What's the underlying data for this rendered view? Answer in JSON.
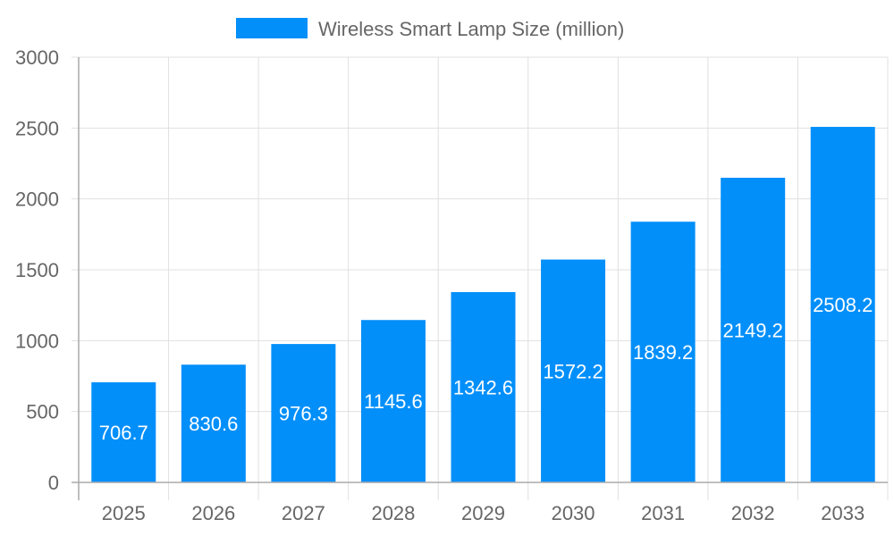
{
  "chart_data": {
    "type": "bar",
    "categories": [
      "2025",
      "2026",
      "2027",
      "2028",
      "2029",
      "2030",
      "2031",
      "2032",
      "2033"
    ],
    "series": [
      {
        "name": "Wireless Smart Lamp Size (million)",
        "values": [
          706.7,
          830.6,
          976.3,
          1145.6,
          1342.6,
          1572.2,
          1839.2,
          2149.2,
          2508.2
        ],
        "color": "#038ffa"
      }
    ],
    "ylim": [
      0,
      3000
    ],
    "yticks": [
      0,
      500,
      1000,
      1500,
      2000,
      2500,
      3000
    ],
    "grid": true,
    "legend_position": "top",
    "data_labels": [
      "706.7",
      "830.6",
      "976.3",
      "1145.6",
      "1342.6",
      "1572.2",
      "1839.2",
      "2149.2",
      "2508.2"
    ]
  }
}
